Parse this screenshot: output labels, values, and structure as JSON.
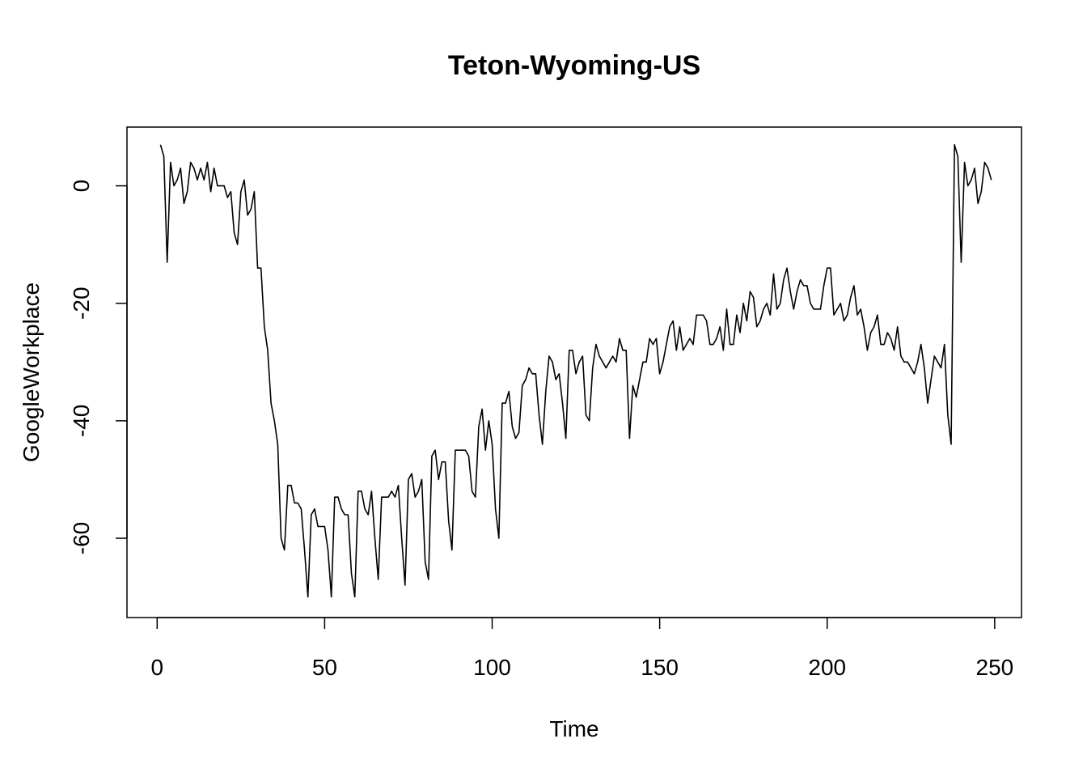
{
  "chart_data": {
    "type": "line",
    "title": "Teton-Wyoming-US",
    "xlabel": "Time",
    "ylabel": "GoogleWorkplace",
    "xlim": [
      -9,
      258
    ],
    "ylim": [
      -73.5,
      10
    ],
    "x_ticks": [
      0,
      50,
      100,
      150,
      200,
      250
    ],
    "y_ticks": [
      0,
      -20,
      -40,
      -60
    ],
    "grid": false,
    "line_color": "#000000",
    "series": [
      {
        "values": [
          7,
          5,
          -13,
          4,
          0,
          1,
          3,
          -3,
          -1,
          4,
          3,
          1,
          3,
          1,
          4,
          -1,
          3,
          0,
          0,
          0,
          -2,
          -1,
          -8,
          -10,
          -1,
          1,
          -5,
          -4,
          -1,
          -14,
          -14,
          -24,
          -28,
          -37,
          -40,
          -44,
          -60,
          -62,
          -51,
          -51,
          -54,
          -54,
          -55,
          -62,
          -70,
          -56,
          -55,
          -58,
          -58,
          -58,
          -62,
          -70,
          -53,
          -53,
          -55,
          -56,
          -56,
          -66,
          -70,
          -52,
          -52,
          -55,
          -56,
          -52,
          -60,
          -67,
          -53,
          -53,
          -53,
          -52,
          -53,
          -51,
          -60,
          -68,
          -50,
          -49,
          -53,
          -52,
          -50,
          -64,
          -67,
          -46,
          -45,
          -50,
          -47,
          -47,
          -57,
          -62,
          -45,
          -45,
          -45,
          -45,
          -46,
          -52,
          -53,
          -41,
          -38,
          -45,
          -40,
          -44,
          -55,
          -60,
          -37,
          -37,
          -35,
          -41,
          -43,
          -42,
          -34,
          -33,
          -31,
          -32,
          -32,
          -39,
          -44,
          -35,
          -29,
          -30,
          -33,
          -32,
          -37,
          -43,
          -28,
          -28,
          -32,
          -30,
          -29,
          -39,
          -40,
          -31,
          -27,
          -29,
          -30,
          -31,
          -30,
          -29,
          -30,
          -26,
          -28,
          -28,
          -43,
          -34,
          -36,
          -33,
          -30,
          -30,
          -26,
          -27,
          -26,
          -32,
          -30,
          -27,
          -24,
          -23,
          -28,
          -24,
          -28,
          -27,
          -26,
          -27,
          -22,
          -22,
          -22,
          -23,
          -27,
          -27,
          -26,
          -24,
          -28,
          -21,
          -27,
          -27,
          -22,
          -25,
          -20,
          -23,
          -18,
          -19,
          -24,
          -23,
          -21,
          -20,
          -22,
          -15,
          -21,
          -20,
          -16,
          -14,
          -18,
          -21,
          -18,
          -16,
          -17,
          -17,
          -20,
          -21,
          -21,
          -21,
          -17,
          -14,
          -14,
          -22,
          -21,
          -20,
          -23,
          -22,
          -19,
          -17,
          -22,
          -21,
          -24,
          -28,
          -25,
          -24,
          -22,
          -27,
          -27,
          -25,
          -26,
          -28,
          -24,
          -29,
          -30,
          -30,
          -31,
          -32,
          -30,
          -27,
          -31,
          -37,
          -33,
          -29,
          -30,
          -31,
          -27,
          -39,
          -44,
          7,
          5,
          -13,
          4,
          0,
          1,
          3,
          -3,
          -1,
          4,
          3,
          1
        ]
      }
    ]
  }
}
